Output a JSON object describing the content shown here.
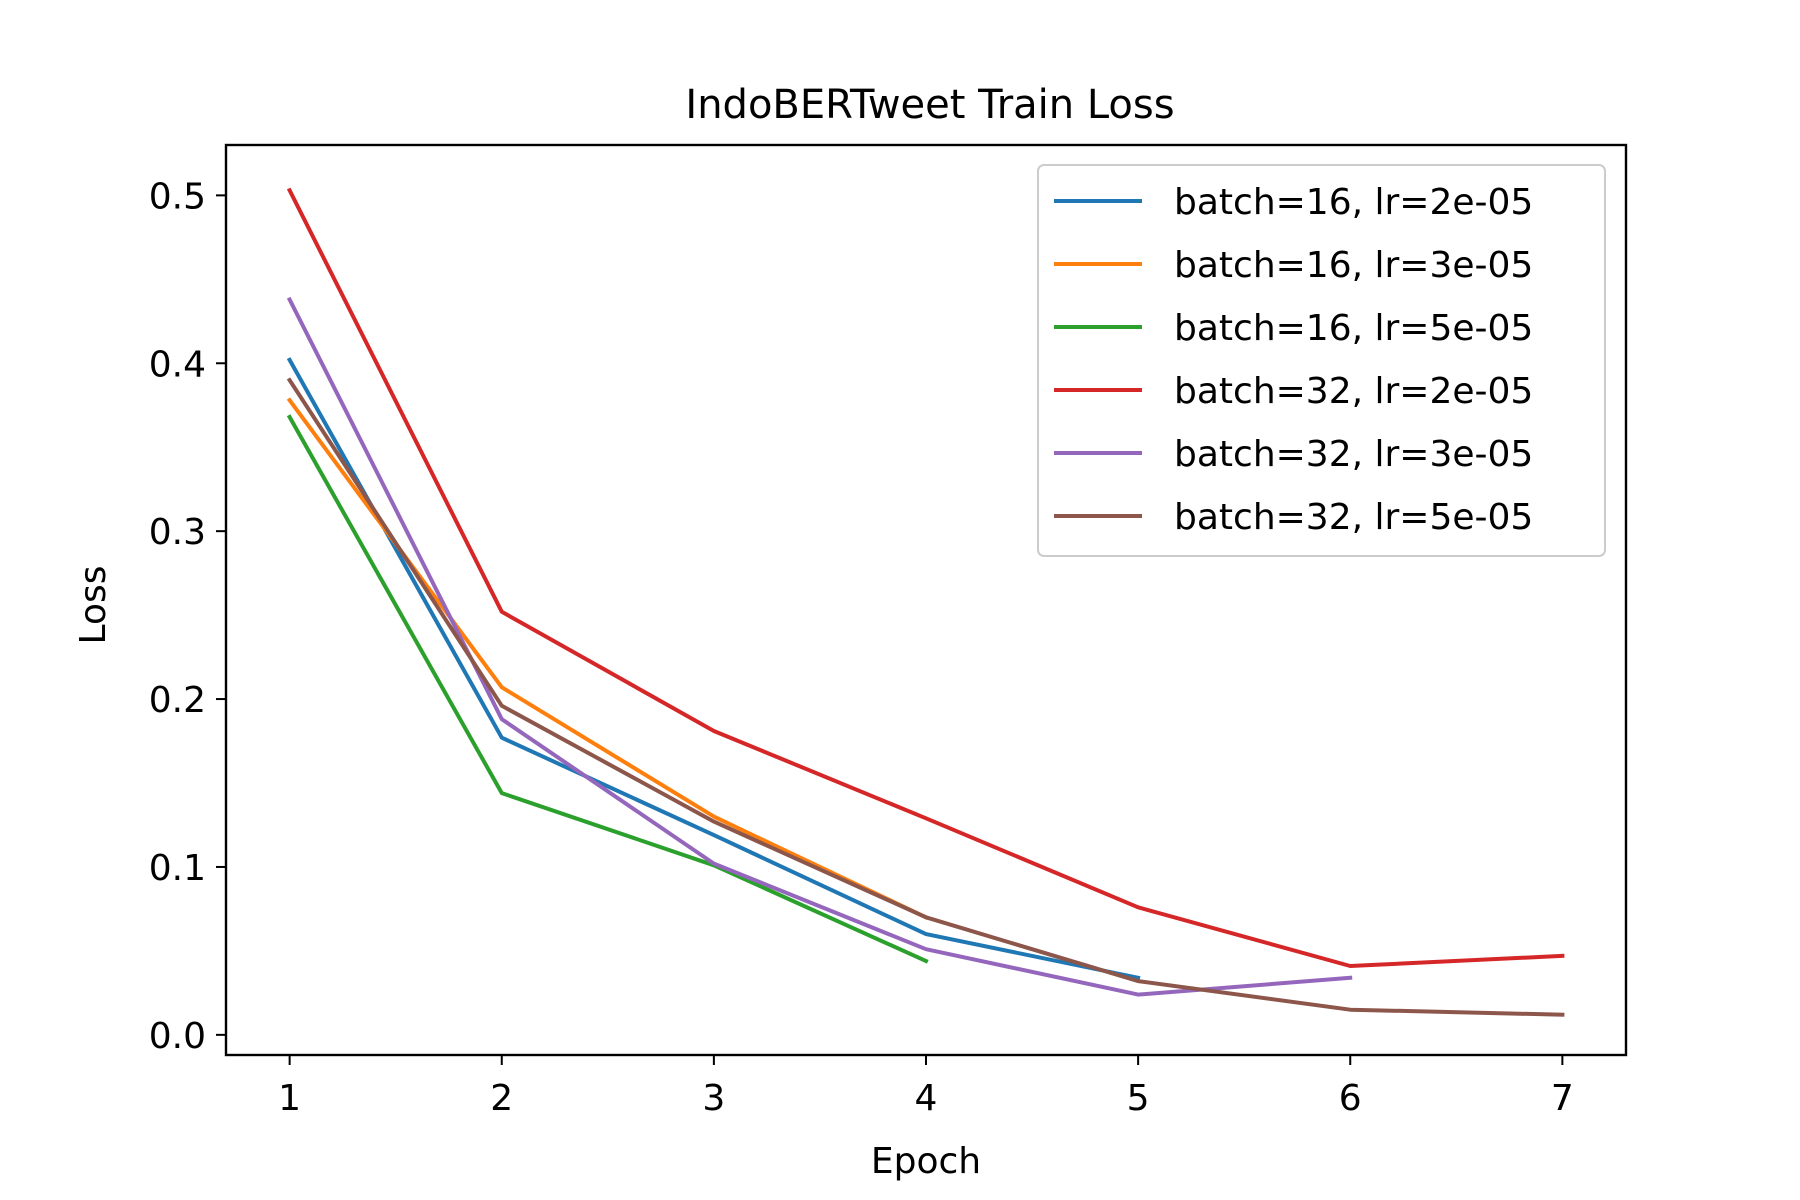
{
  "chart_data": {
    "type": "line",
    "title": "IndoBERTweet Train Loss",
    "xlabel": "Epoch",
    "ylabel": "Loss",
    "xlim": [
      0.7,
      7.3
    ],
    "ylim": [
      -0.012,
      0.53
    ],
    "xticks": [
      1,
      2,
      3,
      4,
      5,
      6,
      7
    ],
    "xtick_labels": [
      "1",
      "2",
      "3",
      "4",
      "5",
      "6",
      "7"
    ],
    "yticks": [
      0.0,
      0.1,
      0.2,
      0.3,
      0.4,
      0.5
    ],
    "ytick_labels": [
      "0.0",
      "0.1",
      "0.2",
      "0.3",
      "0.4",
      "0.5"
    ],
    "grid": false,
    "legend_position": "upper-right",
    "series": [
      {
        "name": "batch=16, lr=2e-05",
        "color": "#1f77b4",
        "x": [
          1,
          2,
          3,
          4,
          5
        ],
        "values": [
          0.402,
          0.177,
          0.119,
          0.06,
          0.034
        ]
      },
      {
        "name": "batch=16, lr=3e-05",
        "color": "#ff7f0e",
        "x": [
          1,
          2,
          3,
          4
        ],
        "values": [
          0.378,
          0.207,
          0.13,
          0.07
        ]
      },
      {
        "name": "batch=16, lr=5e-05",
        "color": "#2ca02c",
        "x": [
          1,
          2,
          3,
          4
        ],
        "values": [
          0.368,
          0.144,
          0.101,
          0.044
        ]
      },
      {
        "name": "batch=32, lr=2e-05",
        "color": "#d62728",
        "x": [
          1,
          2,
          3,
          4,
          5,
          6,
          7
        ],
        "values": [
          0.503,
          0.252,
          0.181,
          0.129,
          0.076,
          0.041,
          0.047
        ]
      },
      {
        "name": "batch=32, lr=3e-05",
        "color": "#9467bd",
        "x": [
          1,
          2,
          3,
          4,
          5,
          6
        ],
        "values": [
          0.438,
          0.188,
          0.102,
          0.051,
          0.024,
          0.034
        ]
      },
      {
        "name": "batch=32, lr=5e-05",
        "color": "#8c564b",
        "x": [
          1,
          2,
          3,
          4,
          5,
          6,
          7
        ],
        "values": [
          0.39,
          0.196,
          0.127,
          0.07,
          0.032,
          0.015,
          0.012
        ]
      }
    ]
  }
}
